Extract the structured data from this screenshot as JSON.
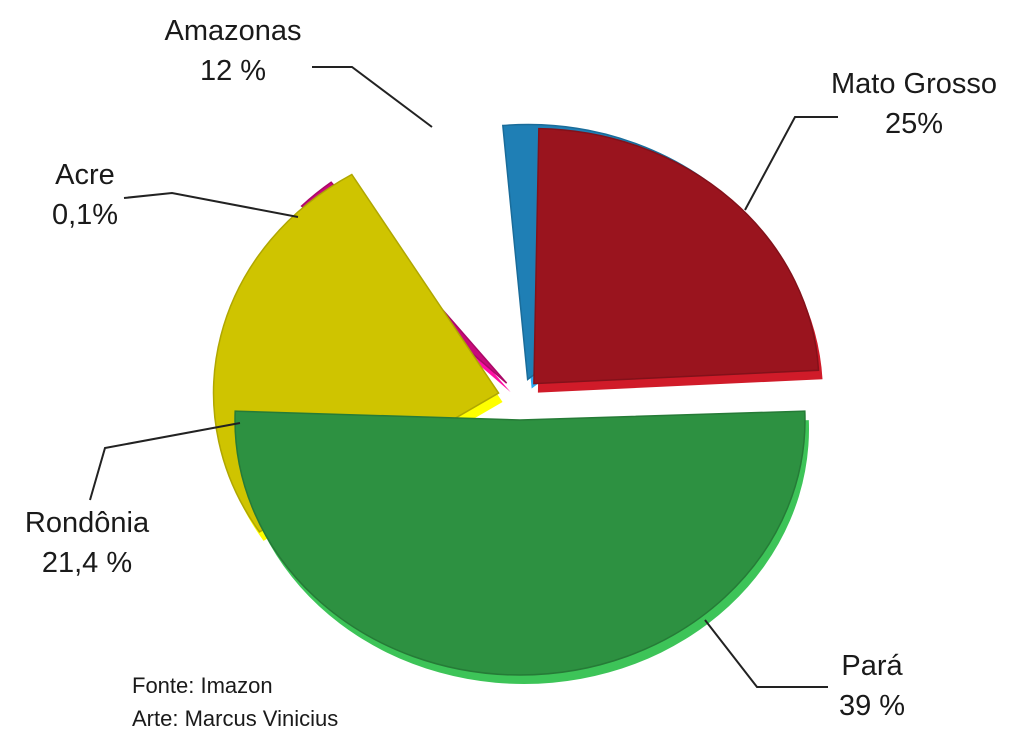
{
  "chart_data": {
    "type": "pie",
    "title": "",
    "slices": [
      {
        "name": "Amazonas",
        "label": "Amazonas",
        "value_text": "12 %",
        "value": 12,
        "color": "#1f7fb5"
      },
      {
        "name": "Mato Grosso",
        "label": "Mato Grosso",
        "value_text": "25%",
        "value": 25,
        "color": "#9a141e"
      },
      {
        "name": "Pará",
        "label": "Pará",
        "value_text": "39 %",
        "value": 39,
        "color": "#2d9141"
      },
      {
        "name": "Rondônia",
        "label": "Rondônia",
        "value_text": "21,4 %",
        "value": 21.4,
        "color": "#cfc400"
      },
      {
        "name": "Acre",
        "label": "Acre",
        "value_text": "0,1%",
        "value": 0.1,
        "color": "#c80a7a"
      }
    ]
  },
  "credits": {
    "source": "Fonte: Imazon",
    "art": "Arte: Marcus Vinicius"
  }
}
